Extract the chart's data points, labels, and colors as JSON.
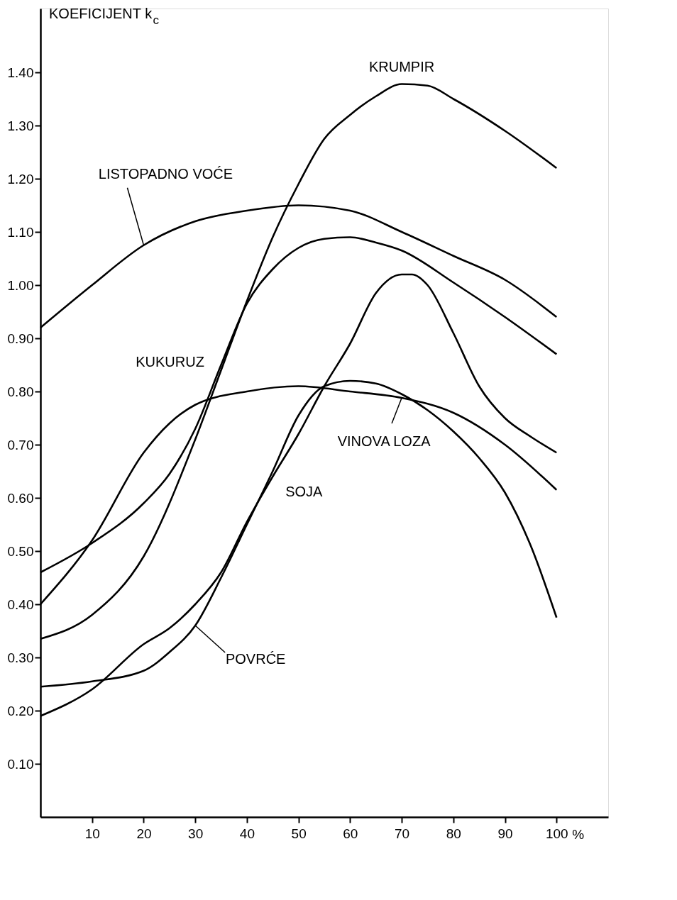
{
  "chart_data": {
    "type": "line",
    "ylabel": "KOEFICIJENT k$_{c}$",
    "xlabel": "%",
    "xlim": [
      0,
      110
    ],
    "ylim": [
      0,
      1.52
    ],
    "xticks": [
      10,
      20,
      30,
      40,
      50,
      60,
      70,
      80,
      90,
      100
    ],
    "yticks": [
      {
        "value": 0.1,
        "label": "0.10"
      },
      {
        "value": 0.2,
        "label": "0.20"
      },
      {
        "value": 0.3,
        "label": "0.30"
      },
      {
        "value": 0.4,
        "label": "0.40"
      },
      {
        "value": 0.5,
        "label": "0.50"
      },
      {
        "value": 0.6,
        "label": "0.60"
      },
      {
        "value": 0.7,
        "label": "0.70"
      },
      {
        "value": 0.8,
        "label": "0.80"
      },
      {
        "value": 0.9,
        "label": "0.90"
      },
      {
        "value": 1.0,
        "label": "1.00"
      },
      {
        "value": 1.1,
        "label": "1.10"
      },
      {
        "value": 1.2,
        "label": "1.20"
      },
      {
        "value": 1.3,
        "label": "1.30"
      },
      {
        "value": 1.4,
        "label": "1.40"
      }
    ],
    "marker": "none",
    "line_style": "solid",
    "series": [
      {
        "name": "LISTOPADNO VOĆE",
        "color": "#000000",
        "x": [
          0,
          10,
          20,
          30,
          40,
          50,
          60,
          70,
          80,
          90,
          100
        ],
        "values": [
          0.92,
          1.0,
          1.075,
          1.12,
          1.14,
          1.15,
          1.14,
          1.1,
          1.055,
          1.01,
          0.94
        ]
      },
      {
        "name": "KRUMPIR",
        "color": "#000000",
        "x": [
          0,
          10,
          20,
          30,
          35,
          40,
          45,
          50,
          55,
          60,
          65,
          70,
          75,
          80,
          90,
          100
        ],
        "values": [
          0.335,
          0.38,
          0.49,
          0.71,
          0.84,
          0.97,
          1.09,
          1.19,
          1.275,
          1.32,
          1.355,
          1.378,
          1.375,
          1.35,
          1.29,
          1.22
        ]
      },
      {
        "name": "KUKURUZ",
        "color": "#000000",
        "x": [
          0,
          10,
          20,
          25,
          30,
          35,
          40,
          45,
          50,
          55,
          60,
          65,
          70,
          80,
          90,
          100
        ],
        "values": [
          0.46,
          0.515,
          0.59,
          0.645,
          0.73,
          0.85,
          0.965,
          1.03,
          1.07,
          1.087,
          1.09,
          1.08,
          1.065,
          1.005,
          0.94,
          0.87
        ]
      },
      {
        "name": "VINOVA LOZA",
        "color": "#000000",
        "x": [
          0,
          10,
          20,
          25,
          30,
          40,
          50,
          60,
          70,
          80,
          90,
          100
        ],
        "values": [
          0.4,
          0.52,
          0.685,
          0.74,
          0.775,
          0.8,
          0.81,
          0.8,
          0.788,
          0.76,
          0.7,
          0.615
        ]
      },
      {
        "name": "SOJA",
        "color": "#000000",
        "x": [
          0,
          10,
          20,
          25,
          30,
          35,
          40,
          45,
          50,
          55,
          60,
          65,
          70,
          72,
          75,
          80,
          85,
          90,
          95,
          100
        ],
        "values": [
          0.19,
          0.24,
          0.325,
          0.355,
          0.4,
          0.46,
          0.555,
          0.64,
          0.72,
          0.81,
          0.89,
          0.985,
          1.02,
          1.02,
          1.0,
          0.91,
          0.81,
          0.75,
          0.715,
          0.685
        ]
      },
      {
        "name": "POVRĆE",
        "color": "#000000",
        "x": [
          0,
          10,
          20,
          25,
          30,
          35,
          40,
          45,
          50,
          55,
          60,
          65,
          70,
          75,
          80,
          85,
          90,
          95,
          100
        ],
        "values": [
          0.245,
          0.255,
          0.275,
          0.31,
          0.36,
          0.45,
          0.55,
          0.65,
          0.755,
          0.81,
          0.82,
          0.815,
          0.795,
          0.765,
          0.725,
          0.675,
          0.61,
          0.51,
          0.375
        ]
      }
    ]
  }
}
